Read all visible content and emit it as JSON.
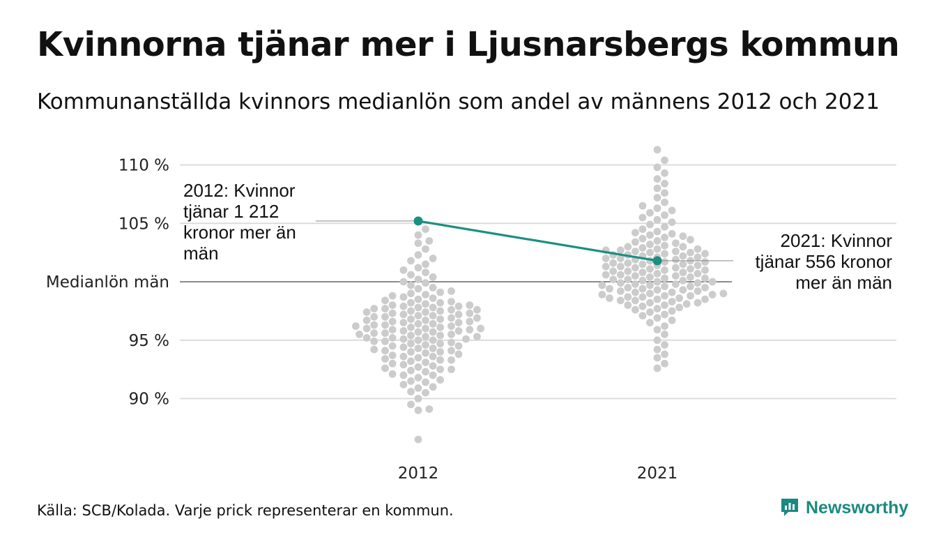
{
  "title": "Kvinnorna tjänar mer i Ljusnarsbergs kommun",
  "subtitle": "Kommunanställda kvinnors medianlön som andel av männens 2012 och 2021",
  "source": "Källa: SCB/Kolada. Varje prick representerar en kommun.",
  "brand": {
    "name": "Newsworthy"
  },
  "chart_data": {
    "type": "scatter",
    "title": "Kvinnorna tjänar mer i Ljusnarsbergs kommun",
    "subtitle": "Kommunanställda kvinnors medianlön som andel av männens 2012 och 2021",
    "categories": [
      "2012",
      "2021"
    ],
    "y_ticks": [
      {
        "value": 110,
        "label": "110 %"
      },
      {
        "value": 105,
        "label": "105 %"
      },
      {
        "value": 100,
        "label": "Medianlön män"
      },
      {
        "value": 95,
        "label": "95 %"
      },
      {
        "value": 90,
        "label": "90 %"
      }
    ],
    "ylim": [
      86,
      112
    ],
    "grid": true,
    "highlight": {
      "name": "Ljusnarsbergs kommun",
      "color": "#1a9080",
      "values": [
        {
          "x": "2012",
          "y": 105.2
        },
        {
          "x": "2021",
          "y": 101.8
        }
      ]
    },
    "annotations": [
      {
        "text": "2012: Kvinnor tjänar 1 212 kronor mer än män",
        "x": "2012",
        "y": 105.2
      },
      {
        "text": "2021: Kvinnor tjänar 556 kronor mer än män",
        "x": "2021",
        "y": 101.8
      }
    ],
    "series": [
      {
        "x": "2012",
        "values": [
          86.5,
          89.0,
          89.1,
          89.5,
          90.0,
          90.5,
          90.6,
          90.9,
          91.0,
          91.2,
          91.4,
          91.5,
          91.6,
          91.8,
          92.0,
          92.0,
          92.1,
          92.3,
          92.4,
          92.5,
          92.5,
          92.6,
          92.7,
          92.8,
          92.9,
          93.0,
          93.1,
          93.2,
          93.3,
          93.3,
          93.4,
          93.5,
          93.6,
          93.6,
          93.7,
          93.8,
          93.9,
          94.0,
          94.0,
          94.1,
          94.1,
          94.2,
          94.3,
          94.3,
          94.4,
          94.5,
          94.5,
          94.6,
          94.7,
          94.7,
          94.8,
          94.9,
          94.9,
          95.0,
          95.0,
          95.1,
          95.1,
          95.2,
          95.2,
          95.3,
          95.3,
          95.4,
          95.4,
          95.5,
          95.5,
          95.6,
          95.6,
          95.7,
          95.7,
          95.8,
          95.8,
          95.9,
          95.9,
          96.0,
          96.0,
          96.0,
          96.1,
          96.1,
          96.2,
          96.2,
          96.3,
          96.3,
          96.4,
          96.4,
          96.5,
          96.5,
          96.6,
          96.6,
          96.7,
          96.7,
          96.8,
          96.8,
          96.9,
          96.9,
          97.0,
          97.0,
          97.1,
          97.1,
          97.2,
          97.2,
          97.3,
          97.3,
          97.4,
          97.4,
          97.5,
          97.5,
          97.6,
          97.6,
          97.7,
          97.7,
          97.8,
          97.8,
          97.9,
          97.9,
          98.0,
          98.0,
          98.1,
          98.2,
          98.2,
          98.3,
          98.4,
          98.5,
          98.6,
          98.7,
          98.8,
          98.9,
          99.0,
          99.1,
          99.2,
          99.4,
          99.5,
          99.7,
          99.9,
          100.0,
          100.2,
          100.4,
          100.6,
          100.8,
          101.0,
          101.2,
          101.5,
          101.8,
          102.0,
          102.3,
          102.8,
          103.3,
          103.5,
          104.0,
          104.5
        ]
      },
      {
        "x": "2021",
        "values": [
          92.6,
          93.0,
          93.5,
          93.8,
          94.2,
          94.6,
          95.0,
          95.5,
          95.9,
          96.2,
          96.5,
          96.7,
          96.9,
          97.1,
          97.2,
          97.4,
          97.5,
          97.6,
          97.7,
          97.8,
          97.9,
          98.0,
          98.0,
          98.1,
          98.2,
          98.2,
          98.3,
          98.4,
          98.4,
          98.5,
          98.5,
          98.6,
          98.6,
          98.7,
          98.7,
          98.8,
          98.8,
          98.9,
          98.9,
          99.0,
          99.0,
          99.1,
          99.1,
          99.2,
          99.2,
          99.3,
          99.3,
          99.4,
          99.4,
          99.5,
          99.5,
          99.6,
          99.6,
          99.7,
          99.7,
          99.8,
          99.8,
          99.9,
          99.9,
          100.0,
          100.0,
          100.1,
          100.1,
          100.2,
          100.2,
          100.3,
          100.3,
          100.4,
          100.4,
          100.5,
          100.5,
          100.6,
          100.6,
          100.7,
          100.7,
          100.8,
          100.8,
          100.9,
          100.9,
          101.0,
          101.0,
          101.1,
          101.1,
          101.2,
          101.2,
          101.3,
          101.3,
          101.4,
          101.4,
          101.5,
          101.5,
          101.6,
          101.6,
          101.7,
          101.7,
          101.8,
          101.8,
          101.9,
          101.9,
          102.0,
          102.0,
          102.1,
          102.1,
          102.2,
          102.2,
          102.3,
          102.3,
          102.4,
          102.4,
          102.5,
          102.5,
          102.6,
          102.6,
          102.7,
          102.7,
          102.8,
          102.8,
          102.9,
          103.0,
          103.0,
          103.1,
          103.2,
          103.3,
          103.4,
          103.5,
          103.6,
          103.7,
          103.8,
          103.9,
          104.0,
          104.1,
          104.2,
          104.3,
          104.5,
          104.7,
          104.9,
          105.1,
          105.3,
          105.5,
          105.7,
          105.9,
          106.1,
          106.3,
          106.5,
          106.8,
          107.2,
          107.6,
          108.0,
          108.4,
          108.8,
          109.3,
          109.8,
          110.4,
          111.3
        ]
      }
    ]
  }
}
